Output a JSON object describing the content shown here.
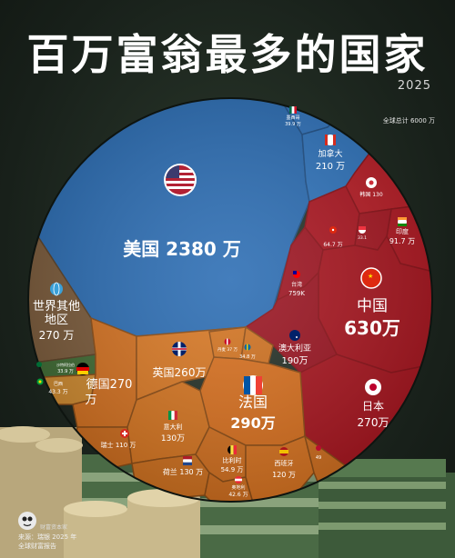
{
  "header": {
    "title": "百万富翁最多的国家",
    "year": "2025",
    "total": "全球总计 6000 万"
  },
  "footer": {
    "brand": "财富资本家",
    "source_line1": "来源：瑞银 2025 年",
    "source_line2": "全球财富报告"
  },
  "colors": {
    "usa": "#2a6cb3",
    "asia": "#a8141e",
    "europe": "#d3701f",
    "rest": "#7a5a3a",
    "africa": "#cf8a2f",
    "bg": "#1c231d"
  },
  "chart_data": {
    "type": "voronoi-treemap",
    "title": "百万富翁最多的国家",
    "unit": "万",
    "items": [
      {
        "name": "美国",
        "value": 2380,
        "label": "美国 2380 万",
        "flag": "us-flag-icon"
      },
      {
        "name": "中国",
        "value": 630,
        "label_line1": "中国",
        "label_line2": "630万",
        "flag": "cn-flag-icon"
      },
      {
        "name": "法国",
        "value": 290,
        "label_line1": "法国",
        "label_line2": "290万",
        "flag": "fr-flag-icon"
      },
      {
        "name": "日本",
        "value": 270,
        "label_line1": "日本",
        "label_line2": "270万",
        "flag": "jp-flag-icon"
      },
      {
        "name": "世界其他地区",
        "value": 270,
        "label_line1": "世界其他",
        "label_line2": "地区",
        "label_line3": "270 万",
        "flag": "globe-icon"
      },
      {
        "name": "德国",
        "value": 270,
        "label_line1": "德国270",
        "label_line2": "万",
        "flag": "de-flag-icon"
      },
      {
        "name": "英国",
        "value": 260,
        "label": "英国260万",
        "flag": "uk-flag-icon"
      },
      {
        "name": "加拿大",
        "value": 210,
        "label_line1": "加拿大",
        "label_line2": "210 万",
        "flag": "ca-flag-icon"
      },
      {
        "name": "澳大利亚",
        "value": 190,
        "label_line1": "澳大利亚",
        "label_line2": "190万",
        "flag": "au-flag-icon"
      },
      {
        "name": "意大利",
        "value": 130,
        "label_line1": "意大利",
        "label_line2": "130万",
        "flag": "it-flag-icon"
      },
      {
        "name": "荷兰",
        "value": 130,
        "label": "荷兰 130 万",
        "flag": "nl-flag-icon"
      },
      {
        "name": "韩国",
        "value": 130,
        "label": "韩国 130",
        "flag": "kr-flag-icon"
      },
      {
        "name": "瑞士",
        "value": 110,
        "label": "瑞士 110 万",
        "flag": "ch-flag-icon"
      },
      {
        "name": "印度",
        "value": 91.7,
        "label_line1": "印度",
        "label_line2": "91.7 万",
        "flag": "in-flag-icon"
      },
      {
        "name": "台湾",
        "value": 75.9,
        "label_line1": "台湾",
        "label_line2": "759K",
        "flag": "tw-flag-icon"
      },
      {
        "name": "香港",
        "value": 64.7,
        "label": "64.7 万",
        "flag": "hk-flag-icon"
      },
      {
        "name": "比利时",
        "value": 54.9,
        "label_line1": "比利时",
        "label_line2": "54.9 万",
        "flag": "be-flag-icon"
      },
      {
        "name": "西班牙",
        "value": 120,
        "label_line1": "西班牙",
        "label_line2": "120 万",
        "flag": "es-flag-icon"
      },
      {
        "name": "墨西哥",
        "value": 39.9,
        "label_line1": "墨西哥",
        "label_line2": "39.9 万",
        "flag": "mx-flag-icon"
      },
      {
        "name": "瑞典",
        "value": 34.8,
        "label": "34.8 万",
        "flag": "se-flag-icon"
      },
      {
        "name": "丹麦",
        "value": 37,
        "label": "丹麦 37 万",
        "flag": "dk-flag-icon"
      },
      {
        "name": "奥地利",
        "value": 42.6,
        "label_line1": "奥地利",
        "label_line2": "42.6 万",
        "flag": "at-flag-icon"
      },
      {
        "name": "巴西",
        "value": 43.3,
        "label_line1": "巴西",
        "label_line2": "43.3 万",
        "flag": "br-flag-icon"
      },
      {
        "name": "沙特阿拉伯",
        "value": 33.9,
        "label_line1": "沙特阿拉伯",
        "label_line2": "33.9 万",
        "flag": "sa-flag-icon"
      },
      {
        "name": "新加坡",
        "value": 33.1,
        "label": "33.1",
        "flag": "sg-flag-icon"
      },
      {
        "name": "挪威",
        "value": 49,
        "label": "49",
        "flag": "no-flag-icon"
      }
    ]
  }
}
